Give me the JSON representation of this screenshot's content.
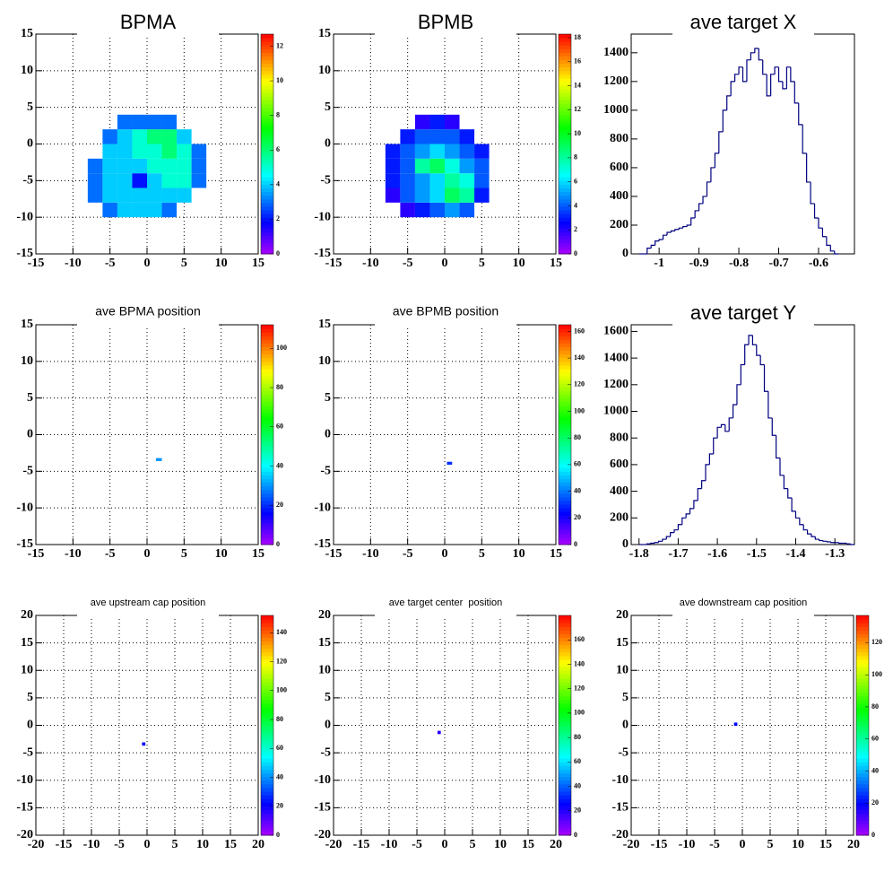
{
  "chart_data": [
    {
      "type": "heatmap",
      "title": "BPMA",
      "palette": "rainbow",
      "grid": true,
      "xlim": [
        -15,
        15
      ],
      "ylim": [
        -15,
        15
      ],
      "xticks": [
        -15,
        -10,
        -5,
        0,
        5,
        10,
        15
      ],
      "yticks": [
        -15,
        -10,
        -5,
        0,
        5,
        10,
        15
      ],
      "zlim": [
        0,
        12.7
      ],
      "zticks": [
        0,
        2,
        4,
        6,
        8,
        10,
        12
      ],
      "xbins": [
        -8,
        -6,
        -4,
        -2,
        0,
        2,
        4,
        6,
        8
      ],
      "ybins": [
        -10,
        -8,
        -6,
        -4,
        -2,
        0,
        2,
        4
      ],
      "z": [
        [
          null,
          3,
          4,
          4,
          4,
          3,
          null,
          null
        ],
        [
          3,
          4,
          4,
          4,
          4,
          4,
          4,
          null
        ],
        [
          3,
          4,
          4,
          2,
          4,
          5,
          5,
          3
        ],
        [
          3,
          4,
          4,
          4,
          5,
          5,
          5,
          3
        ],
        [
          null,
          4,
          4,
          5,
          5,
          6,
          5,
          3
        ],
        [
          null,
          3,
          4,
          5,
          6,
          6,
          4,
          null
        ],
        [
          null,
          null,
          3,
          3,
          3,
          3,
          null,
          null
        ]
      ]
    },
    {
      "type": "heatmap",
      "title": "BPMB",
      "palette": "rainbow",
      "grid": true,
      "xlim": [
        -15,
        15
      ],
      "ylim": [
        -15,
        15
      ],
      "xticks": [
        -15,
        -10,
        -5,
        0,
        5,
        10,
        15
      ],
      "yticks": [
        -15,
        -10,
        -5,
        0,
        5,
        10,
        15
      ],
      "zlim": [
        0,
        18.3
      ],
      "zticks": [
        0,
        2,
        4,
        6,
        8,
        10,
        12,
        14,
        16,
        18
      ],
      "xbins": [
        -8,
        -6,
        -4,
        -2,
        0,
        2,
        4,
        6
      ],
      "ybins": [
        -10,
        -8,
        -6,
        -4,
        -2,
        0,
        2,
        4
      ],
      "z": [
        [
          null,
          2,
          3,
          4,
          5,
          4,
          null
        ],
        [
          2,
          4,
          5,
          6,
          9,
          8,
          3
        ],
        [
          3,
          4,
          5,
          6,
          8,
          7,
          4
        ],
        [
          3,
          4,
          8,
          9,
          7,
          5,
          4
        ],
        [
          3,
          4,
          5,
          6,
          5,
          4,
          3
        ],
        [
          null,
          3,
          4,
          4,
          4,
          3,
          null
        ],
        [
          null,
          null,
          2,
          3,
          2,
          null,
          null
        ]
      ]
    },
    {
      "type": "histogram",
      "title": "ave target X",
      "color": "#000080",
      "grid": false,
      "xlim": [
        -1.07,
        -0.51
      ],
      "ylim": [
        0,
        1530
      ],
      "xticks": [
        -1,
        -0.9,
        -0.8,
        -0.7,
        -0.6
      ],
      "yticks": [
        0,
        200,
        400,
        600,
        800,
        1000,
        1200,
        1400
      ],
      "bins": [
        -1.05,
        -1.04,
        -1.03,
        -1.02,
        -1.01,
        -1,
        -0.99,
        -0.98,
        -0.97,
        -0.96,
        -0.95,
        -0.94,
        -0.93,
        -0.92,
        -0.91,
        -0.9,
        -0.89,
        -0.88,
        -0.87,
        -0.86,
        -0.85,
        -0.84,
        -0.83,
        -0.82,
        -0.81,
        -0.8,
        -0.79,
        -0.78,
        -0.77,
        -0.76,
        -0.75,
        -0.74,
        -0.73,
        -0.72,
        -0.71,
        -0.7,
        -0.69,
        -0.68,
        -0.67,
        -0.66,
        -0.65,
        -0.64,
        -0.63,
        -0.62,
        -0.61,
        -0.6,
        -0.59,
        -0.58,
        -0.57,
        -0.56,
        -0.55
      ],
      "values": [
        0,
        0,
        40,
        60,
        90,
        100,
        130,
        150,
        160,
        170,
        180,
        190,
        200,
        250,
        300,
        350,
        400,
        500,
        600,
        700,
        850,
        1000,
        1100,
        1200,
        1250,
        1300,
        1200,
        1350,
        1400,
        1430,
        1350,
        1250,
        1100,
        1250,
        1300,
        1200,
        1150,
        1300,
        1200,
        1050,
        900,
        700,
        500,
        350,
        250,
        180,
        120,
        60,
        20,
        0
      ]
    },
    {
      "type": "heatmap",
      "title": "ave BPMA position",
      "palette": "rainbow",
      "grid": true,
      "xlim": [
        -15,
        15
      ],
      "ylim": [
        -15,
        15
      ],
      "xticks": [
        -15,
        -10,
        -5,
        0,
        5,
        10,
        15
      ],
      "yticks": [
        -15,
        -10,
        -5,
        0,
        5,
        10,
        15
      ],
      "zlim": [
        0,
        112
      ],
      "zticks": [
        0,
        20,
        40,
        60,
        80,
        100
      ],
      "xbins": [
        1.2,
        2.0
      ],
      "ybins": [
        -3.6,
        -3.2
      ],
      "z": [
        [
          30
        ]
      ]
    },
    {
      "type": "heatmap",
      "title": "ave BPMB position",
      "palette": "rainbow",
      "grid": true,
      "xlim": [
        -15,
        15
      ],
      "ylim": [
        -15,
        15
      ],
      "xticks": [
        -15,
        -10,
        -5,
        0,
        5,
        10,
        15
      ],
      "yticks": [
        -15,
        -10,
        -5,
        0,
        5,
        10,
        15
      ],
      "zlim": [
        0,
        165
      ],
      "zticks": [
        0,
        20,
        40,
        60,
        80,
        100,
        120,
        140,
        160
      ],
      "xbins": [
        0.3,
        1.0
      ],
      "ybins": [
        -4.1,
        -3.7
      ],
      "z": [
        [
          30
        ]
      ]
    },
    {
      "type": "histogram",
      "title": "ave target Y",
      "color": "#000080",
      "grid": false,
      "xlim": [
        -1.82,
        -1.25
      ],
      "ylim": [
        0,
        1650
      ],
      "xticks": [
        -1.8,
        -1.7,
        -1.6,
        -1.5,
        -1.4,
        -1.3
      ],
      "yticks": [
        0,
        200,
        400,
        600,
        800,
        1000,
        1200,
        1400,
        1600
      ],
      "bins": [
        -1.8,
        -1.79,
        -1.78,
        -1.77,
        -1.76,
        -1.75,
        -1.74,
        -1.73,
        -1.72,
        -1.71,
        -1.7,
        -1.69,
        -1.68,
        -1.67,
        -1.66,
        -1.65,
        -1.64,
        -1.63,
        -1.62,
        -1.61,
        -1.6,
        -1.59,
        -1.58,
        -1.57,
        -1.56,
        -1.55,
        -1.54,
        -1.53,
        -1.52,
        -1.51,
        -1.5,
        -1.49,
        -1.48,
        -1.47,
        -1.46,
        -1.45,
        -1.44,
        -1.43,
        -1.42,
        -1.41,
        -1.4,
        -1.39,
        -1.38,
        -1.37,
        -1.36,
        -1.35,
        -1.34,
        -1.33,
        -1.32,
        -1.31,
        -1.3,
        -1.29,
        -1.28,
        -1.27,
        -1.26,
        -1.25
      ],
      "values": [
        0,
        0,
        5,
        10,
        15,
        25,
        40,
        60,
        90,
        110,
        150,
        200,
        230,
        270,
        330,
        420,
        480,
        600,
        680,
        800,
        880,
        900,
        850,
        950,
        1050,
        1200,
        1350,
        1500,
        1570,
        1500,
        1420,
        1350,
        1150,
        950,
        820,
        650,
        520,
        420,
        350,
        250,
        200,
        150,
        110,
        80,
        60,
        40,
        30,
        25,
        20,
        15,
        15,
        10,
        10,
        5,
        0
      ]
    },
    {
      "type": "heatmap",
      "title": "ave upstream cap position",
      "palette": "rainbow",
      "grid": true,
      "xlim": [
        -20,
        20
      ],
      "ylim": [
        -20,
        20
      ],
      "xticks": [
        -20,
        -15,
        -10,
        -5,
        0,
        5,
        10,
        15,
        20
      ],
      "yticks": [
        -20,
        -15,
        -10,
        -5,
        0,
        5,
        10,
        15,
        20
      ],
      "zlim": [
        0,
        152
      ],
      "zticks": [
        0,
        20,
        40,
        60,
        80,
        100,
        120,
        140
      ],
      "xbins": [
        -0.9,
        -0.3
      ],
      "ybins": [
        -3.7,
        -3.1
      ],
      "z": [
        [
          20
        ]
      ]
    },
    {
      "type": "heatmap",
      "title": "ave target center  position",
      "palette": "rainbow",
      "grid": true,
      "xlim": [
        -20,
        20
      ],
      "ylim": [
        -20,
        20
      ],
      "xticks": [
        -20,
        -15,
        -10,
        -5,
        0,
        5,
        10,
        15,
        20
      ],
      "yticks": [
        -20,
        -15,
        -10,
        -5,
        0,
        5,
        10,
        15,
        20
      ],
      "zlim": [
        0,
        180
      ],
      "zticks": [
        0,
        20,
        40,
        60,
        80,
        100,
        120,
        140,
        160
      ],
      "xbins": [
        -1.3,
        -0.7
      ],
      "ybins": [
        -1.6,
        -1.0
      ],
      "z": [
        [
          20
        ]
      ]
    },
    {
      "type": "heatmap",
      "title": "ave downstream cap position",
      "palette": "rainbow",
      "grid": true,
      "xlim": [
        -20,
        20
      ],
      "ylim": [
        -20,
        20
      ],
      "xticks": [
        -20,
        -15,
        -10,
        -5,
        0,
        5,
        10,
        15,
        20
      ],
      "yticks": [
        -20,
        -15,
        -10,
        -5,
        0,
        5,
        10,
        15,
        20
      ],
      "zlim": [
        0,
        137
      ],
      "zticks": [
        0,
        20,
        40,
        60,
        80,
        100,
        120
      ],
      "xbins": [
        -1.5,
        -0.9
      ],
      "ybins": [
        -0.1,
        0.5
      ],
      "z": [
        [
          20
        ]
      ]
    }
  ]
}
